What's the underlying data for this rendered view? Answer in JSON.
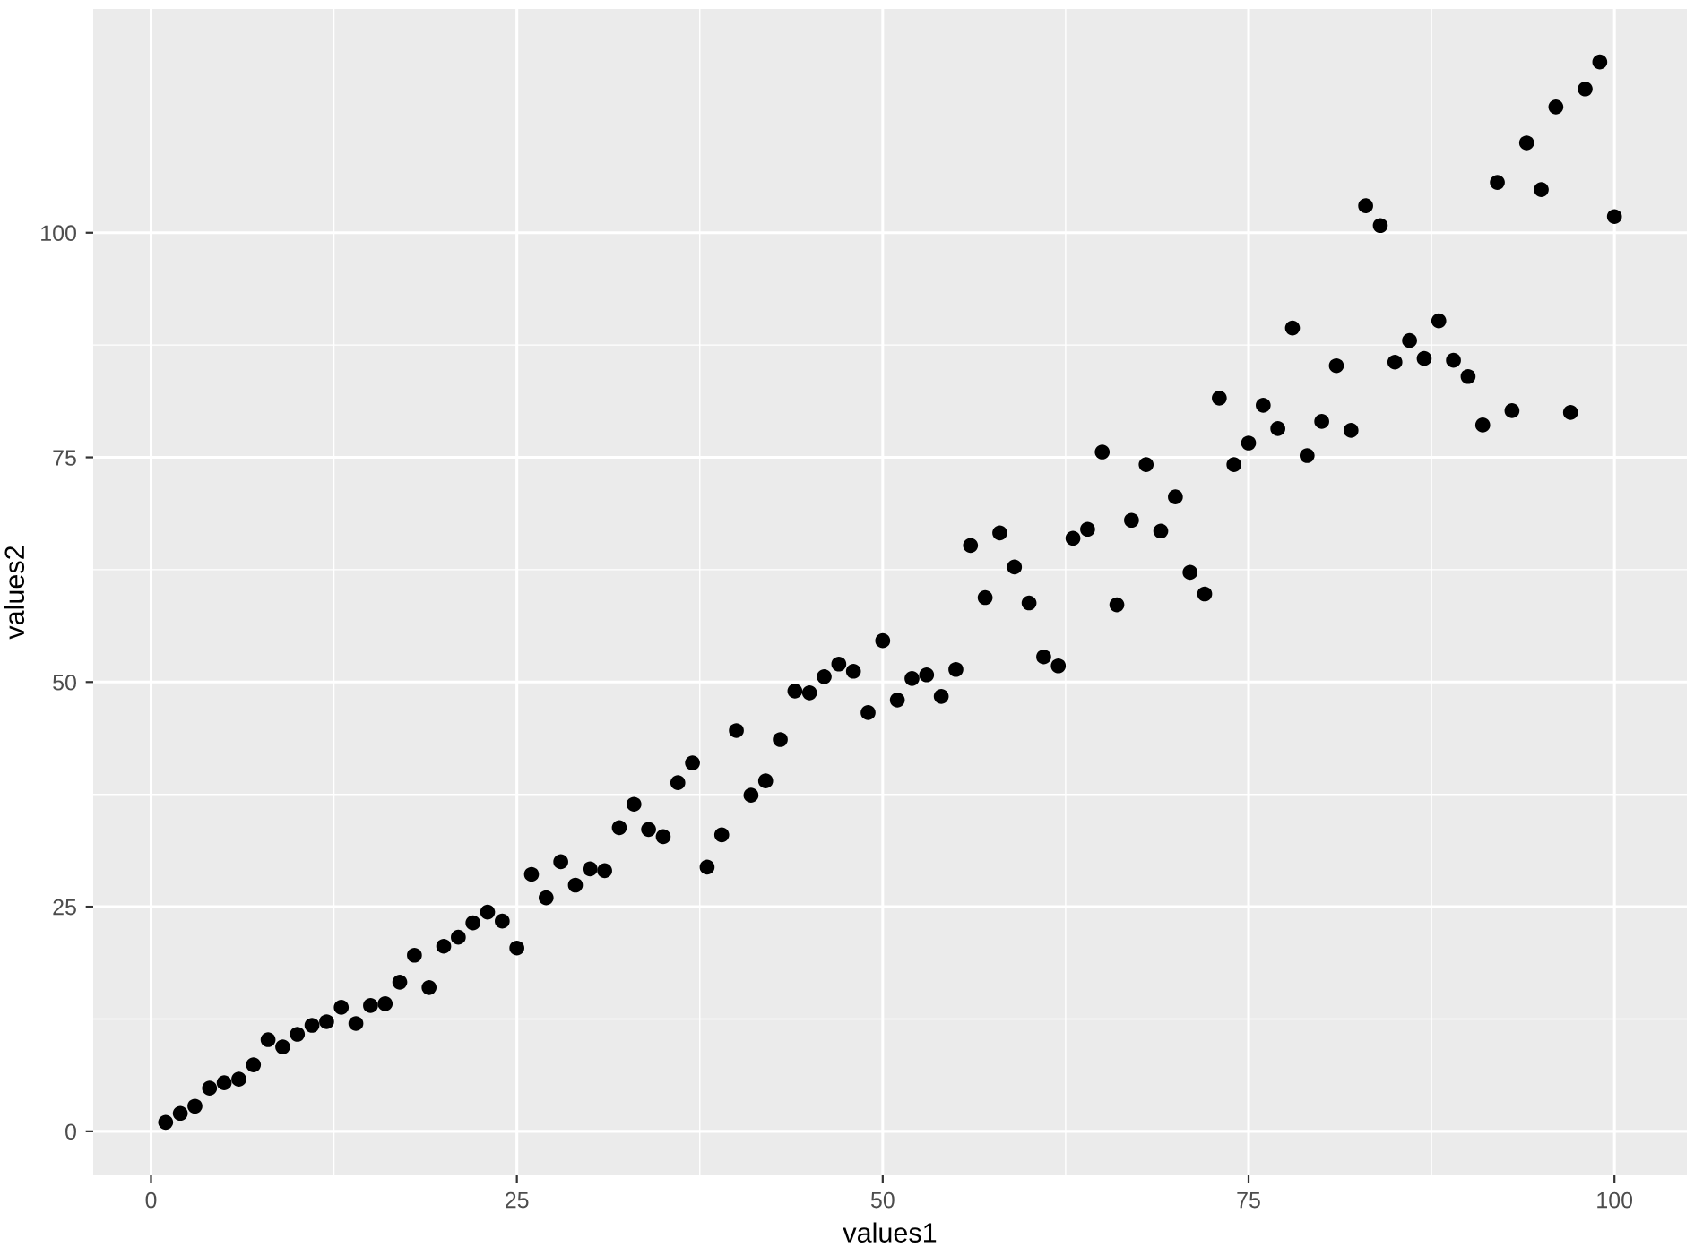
{
  "chart_data": {
    "type": "scatter",
    "xlabel": "values1",
    "ylabel": "values2",
    "marker": "circle",
    "grid": true,
    "x": [
      1,
      2,
      3,
      4,
      5,
      6,
      7,
      8,
      9,
      10,
      11,
      12,
      13,
      14,
      15,
      16,
      17,
      18,
      19,
      20,
      21,
      22,
      23,
      24,
      25,
      26,
      27,
      28,
      29,
      30,
      31,
      32,
      33,
      34,
      35,
      36,
      37,
      38,
      39,
      40,
      41,
      42,
      43,
      44,
      45,
      46,
      47,
      48,
      49,
      50,
      51,
      52,
      53,
      54,
      55,
      56,
      57,
      58,
      59,
      60,
      61,
      62,
      63,
      64,
      65,
      66,
      67,
      68,
      69,
      70,
      71,
      72,
      73,
      74,
      75,
      76,
      77,
      78,
      79,
      80,
      81,
      82,
      83,
      84,
      85,
      86,
      87,
      88,
      89,
      90,
      91,
      92,
      93,
      94,
      95,
      96,
      97,
      98,
      99,
      100
    ],
    "series": [
      {
        "color": "#000000",
        "values": [
          1.0,
          2.0,
          2.8,
          4.8,
          5.4,
          5.8,
          7.4,
          10.2,
          9.4,
          10.8,
          11.8,
          12.2,
          13.8,
          12.0,
          14.0,
          14.2,
          16.6,
          19.6,
          16.0,
          20.6,
          21.6,
          23.2,
          24.4,
          23.4,
          20.4,
          28.6,
          26.0,
          30.0,
          27.4,
          29.2,
          29.0,
          33.8,
          36.4,
          33.6,
          32.8,
          38.8,
          41.0,
          29.4,
          33.0,
          44.6,
          37.4,
          39.0,
          43.6,
          49.0,
          48.8,
          50.6,
          52.0,
          51.2,
          46.6,
          54.6,
          48.0,
          50.4,
          50.8,
          48.4,
          51.4,
          65.2,
          59.4,
          66.6,
          62.8,
          58.8,
          52.8,
          51.8,
          66.0,
          67.0,
          75.6,
          58.6,
          68.0,
          74.2,
          66.8,
          70.6,
          62.2,
          59.8,
          81.6,
          74.2,
          76.6,
          80.8,
          78.2,
          89.4,
          75.2,
          79.0,
          85.2,
          78.0,
          103.0,
          100.8,
          85.6,
          88.0,
          86.0,
          90.2,
          85.8,
          84.0,
          78.6,
          105.6,
          80.2,
          110.0,
          104.8,
          114.0,
          80.0,
          116.0,
          119.0,
          101.8
        ]
      }
    ],
    "xlim": [
      -3.95,
      104.95
    ],
    "ylim": [
      -4.9,
      124.9
    ],
    "xticks": [
      0,
      25,
      50,
      75,
      100
    ],
    "yticks": [
      0,
      25,
      50,
      75,
      100
    ]
  }
}
